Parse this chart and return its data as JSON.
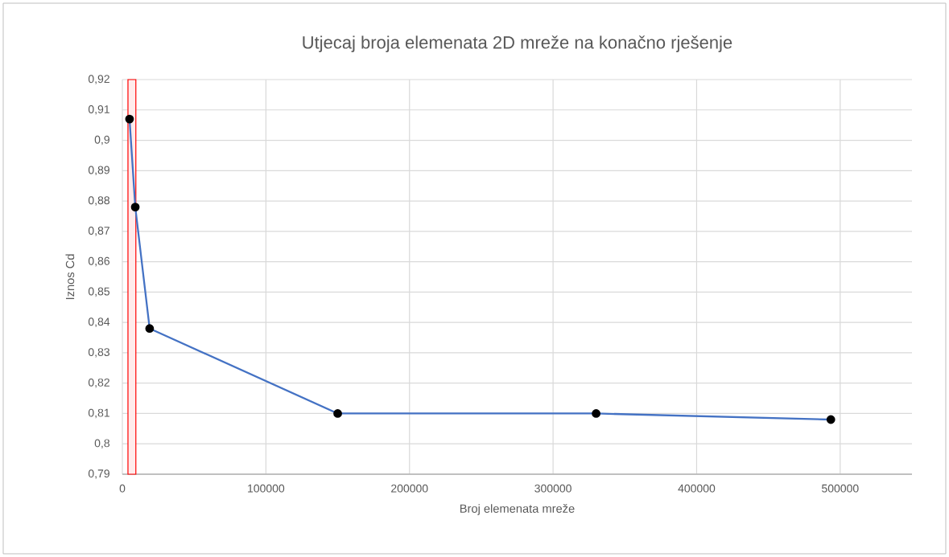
{
  "chart_data": {
    "type": "line",
    "title": "Utjecaj broja elemenata 2D mreže na konačno rješenje",
    "xlabel": "Broj elemenata mreže",
    "ylabel": "Iznos Cd",
    "series": [
      {
        "color": "#4472c4",
        "x": [
          5000,
          9000,
          19000,
          150000,
          330000,
          493500
        ],
        "values": [
          0.907,
          0.878,
          0.838,
          0.81,
          0.81,
          0.808
        ]
      }
    ],
    "xlim": [
      0,
      550000
    ],
    "xticks": [
      0,
      100000,
      200000,
      300000,
      400000,
      500000
    ],
    "ylim": [
      0.79,
      0.92
    ],
    "yticks": [
      {
        "value": 0.79,
        "label": "0,79"
      },
      {
        "value": 0.8,
        "label": "0,8"
      },
      {
        "value": 0.81,
        "label": "0,81"
      },
      {
        "value": 0.82,
        "label": "0,82"
      },
      {
        "value": 0.83,
        "label": "0,83"
      },
      {
        "value": 0.84,
        "label": "0,84"
      },
      {
        "value": 0.85,
        "label": "0,85"
      },
      {
        "value": 0.86,
        "label": "0,86"
      },
      {
        "value": 0.87,
        "label": "0,87"
      },
      {
        "value": 0.88,
        "label": "0,88"
      },
      {
        "value": 0.89,
        "label": "0,89"
      },
      {
        "value": 0.9,
        "label": "0,9"
      },
      {
        "value": 0.91,
        "label": "0,91"
      },
      {
        "value": 0.92,
        "label": "0,92"
      }
    ],
    "grid": true,
    "marker": "circle",
    "line_style": "solid",
    "bands": [
      {
        "axis": "x",
        "from": 3900,
        "to": 9400,
        "color": "#ff0000"
      }
    ]
  }
}
